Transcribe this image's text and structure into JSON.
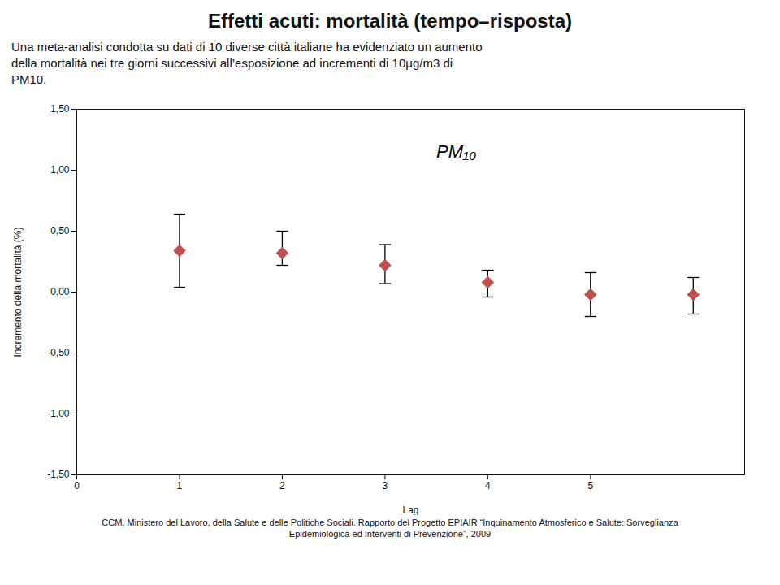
{
  "chart_data": {
    "type": "scatter",
    "title": "Effetti acuti: mortalità (tempo–risposta)",
    "subtitle": [
      "Una meta-analisi condotta su dati di 10 diverse città italiane ha evidenziato un aumento",
      "della mortalità nei tre giorni successivi all’esposizione ad incrementi di 10μg/m3 di",
      "PM10."
    ],
    "caption": [
      "CCM, Ministero del Lavoro, della Salute e delle Politiche Sociali. Rapporto del Progetto EPIAIR “Inquinamento Atmosferico e Salute: Sorveglianza",
      "Epidemiologica ed Interventi di Prevenzione”, 2009"
    ],
    "x": [
      1,
      2,
      3,
      4,
      5,
      6
    ],
    "y": [
      0.34,
      0.32,
      0.22,
      0.08,
      -0.02,
      -0.02
    ],
    "error_upper": [
      0.3,
      0.18,
      0.17,
      0.1,
      0.18,
      0.14
    ],
    "error_lower": [
      0.3,
      0.1,
      0.15,
      0.12,
      0.18,
      0.16
    ],
    "color": "#c0504d",
    "marker": "diamond",
    "xlabel": "Lag",
    "ylabel": "Incremento della mortalità (%)",
    "xlim": [
      0,
      6.5
    ],
    "ylim": [
      -1.5,
      1.5
    ],
    "xticks": [
      0,
      1,
      2,
      3,
      4,
      5
    ],
    "yticks": [
      {
        "value": -1.5,
        "label": "-1,50"
      },
      {
        "value": -1.0,
        "label": "-1,00"
      },
      {
        "value": -0.5,
        "label": "-0,50"
      },
      {
        "value": 0.0,
        "label": "0,00"
      },
      {
        "value": 0.5,
        "label": "0,50"
      },
      {
        "value": 1.0,
        "label": "1,00"
      },
      {
        "value": 1.5,
        "label": "1,50"
      }
    ],
    "annotations": [
      {
        "text": "PM₁₀",
        "x": 3.5,
        "y": 1.15
      }
    ],
    "grid": false
  }
}
